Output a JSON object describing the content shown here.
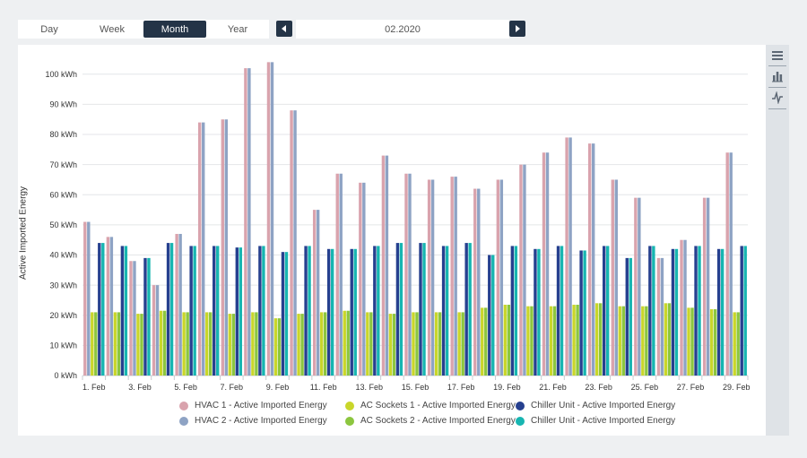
{
  "toolbar": {
    "periods": [
      "Day",
      "Week",
      "Month",
      "Year"
    ],
    "active_period": "Month",
    "date": "02.2020",
    "prev_icon": "chevron-left-icon",
    "next_icon": "chevron-right-icon"
  },
  "side_tools": [
    "menu-icon",
    "bar-chart-icon",
    "line-chart-icon"
  ],
  "colors": {
    "accent": "#243447",
    "hvac1": "#d9a3ad",
    "hvac2": "#8ea3c4",
    "ac1": "#c9d62a",
    "ac2": "#8cc63f",
    "chiller1": "#26408f",
    "chiller2": "#17b5b1"
  },
  "chart_data": {
    "type": "bar",
    "title": "",
    "xlabel": "",
    "ylabel": "Active Imported Energy",
    "y_unit": "kWh",
    "ylim": [
      0,
      105
    ],
    "yticks": [
      0,
      10,
      20,
      30,
      40,
      50,
      60,
      70,
      80,
      90,
      100
    ],
    "ytick_labels": [
      "0 kWh",
      "10 kWh",
      "20 kWh",
      "30 kWh",
      "40 kWh",
      "50 kWh",
      "60 kWh",
      "70 kWh",
      "80 kWh",
      "90 kWh",
      "100 kWh"
    ],
    "categories": [
      "1. Feb",
      "2. Feb",
      "3. Feb",
      "4. Feb",
      "5. Feb",
      "6. Feb",
      "7. Feb",
      "8. Feb",
      "9. Feb",
      "10. Feb",
      "11. Feb",
      "12. Feb",
      "13. Feb",
      "14. Feb",
      "15. Feb",
      "16. Feb",
      "17. Feb",
      "18. Feb",
      "19. Feb",
      "20. Feb",
      "21. Feb",
      "22. Feb",
      "23. Feb",
      "24. Feb",
      "25. Feb",
      "26. Feb",
      "27. Feb",
      "28. Feb",
      "29. Feb"
    ],
    "xtick_labels": [
      "1. Feb",
      "3. Feb",
      "5. Feb",
      "7. Feb",
      "9. Feb",
      "11. Feb",
      "13. Feb",
      "15. Feb",
      "17. Feb",
      "19. Feb",
      "21. Feb",
      "23. Feb",
      "25. Feb",
      "27. Feb",
      "29. Feb"
    ],
    "grid": true,
    "legend_position": "bottom",
    "series": [
      {
        "name": "HVAC 1 - Active Imported Energy",
        "color": "#d9a3ad",
        "values": [
          51,
          46,
          38,
          30,
          47,
          84,
          85,
          102,
          104,
          88,
          55,
          67,
          64,
          73,
          67,
          65,
          66,
          62,
          65,
          70,
          74,
          79,
          77,
          65,
          59,
          39,
          45,
          59,
          74
        ]
      },
      {
        "name": "HVAC 2 - Active Imported Energy",
        "color": "#8ea3c4",
        "values": [
          51,
          46,
          38,
          30,
          47,
          84,
          85,
          102,
          104,
          88,
          55,
          67,
          64,
          73,
          67,
          65,
          66,
          62,
          65,
          70,
          74,
          79,
          77,
          65,
          59,
          39,
          45,
          59,
          74
        ]
      },
      {
        "name": "AC Sockets 1 - Active Imported Energy",
        "color": "#c9d62a",
        "values": [
          21,
          21,
          20.5,
          21.5,
          21,
          21,
          20.5,
          21,
          19,
          20.5,
          21,
          21.5,
          21,
          20.5,
          21,
          21,
          21,
          22.5,
          23.5,
          23,
          23,
          23.5,
          24,
          23,
          23,
          24,
          22.5,
          22,
          21
        ]
      },
      {
        "name": "AC Sockets 2 - Active Imported Energy",
        "color": "#8cc63f",
        "values": [
          21,
          21,
          20.5,
          21.5,
          21,
          21,
          20.5,
          21,
          19,
          20.5,
          21,
          21.5,
          21,
          20.5,
          21,
          21,
          21,
          22.5,
          23.5,
          23,
          23,
          23.5,
          24,
          23,
          23,
          24,
          22.5,
          22,
          21
        ]
      },
      {
        "name": "Chiller Unit - Active Imported Energy",
        "color": "#26408f",
        "values": [
          44,
          43,
          39,
          44,
          43,
          43,
          42.5,
          43,
          41,
          43,
          42,
          42,
          43,
          44,
          44,
          43,
          44,
          40,
          43,
          42,
          43,
          41.5,
          43,
          39,
          43,
          42,
          43,
          42,
          43
        ]
      },
      {
        "name": "Chiller Unit - Active Imported Energy",
        "color": "#17b5b1",
        "values": [
          44,
          43,
          39,
          44,
          43,
          43,
          42.5,
          43,
          41,
          43,
          42,
          42,
          43,
          44,
          44,
          43,
          44,
          40,
          43,
          42,
          43,
          41.5,
          43,
          39,
          43,
          42,
          43,
          42,
          43
        ]
      }
    ]
  }
}
